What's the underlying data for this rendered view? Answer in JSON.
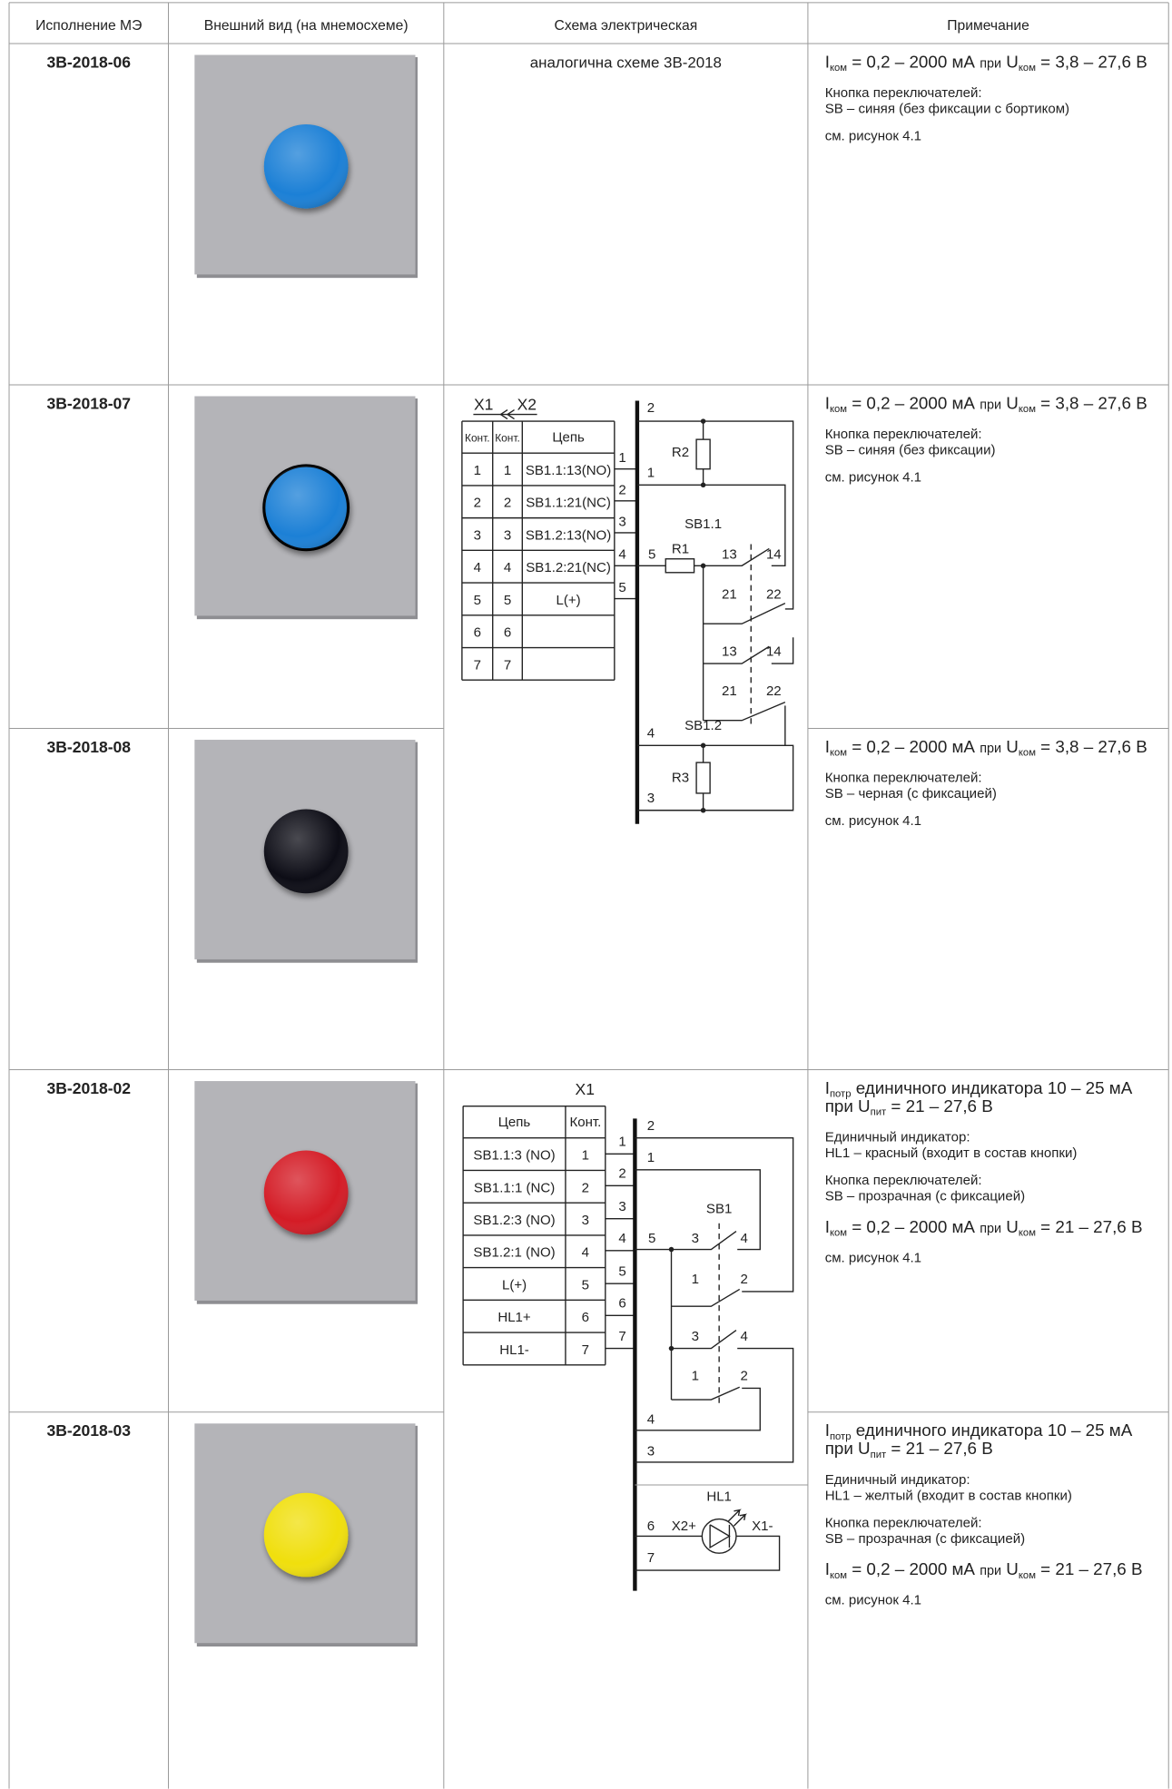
{
  "table": {
    "headers": [
      "Исполнение МЭ",
      "Внешний вид (на мнемосхеме)",
      "Схема электрическая",
      "Примечание"
    ],
    "rows": [
      {
        "id": "3В-2018-06",
        "button": {
          "color": "#1a80d6"
        },
        "scheme": "аналогична схеме 3В-2018",
        "notes": [
          [
            [
              "I",
              {
                "sub": "ком"
              },
              " = 0,2 – 2000 мА ",
              {
                "small": "при"
              },
              " U",
              {
                "sub": "ком"
              },
              " = 3,8 – 27,6 В"
            ]
          ],
          [
            "Кнопка переключателей:",
            "SB – синяя (без фиксации с бортиком)"
          ],
          [
            "см. рисунок 4.1"
          ]
        ]
      },
      {
        "id": "3В-2018-07",
        "button": {
          "color": "#1a80d6",
          "rim": "#000000"
        },
        "notes": [
          [
            [
              "I",
              {
                "sub": "ком"
              },
              " = 0,2 – 2000 мА ",
              {
                "small": "при"
              },
              " U",
              {
                "sub": "ком"
              },
              " = 3,8 – 27,6 В"
            ]
          ],
          [
            "Кнопка переключателей:",
            "SB – синяя (без фиксации)"
          ],
          [
            "см. рисунок 4.1"
          ]
        ]
      },
      {
        "id": "3В-2018-08",
        "button": {
          "color": "#111116"
        },
        "notes": [
          [
            [
              "I",
              {
                "sub": "ком"
              },
              " = 0,2 – 2000 мА ",
              {
                "small": "при"
              },
              " U",
              {
                "sub": "ком"
              },
              " = 3,8 – 27,6 В"
            ]
          ],
          [
            "Кнопка переключателей:",
            "SB – черная (с фиксацией)"
          ],
          [
            "см. рисунок 4.1"
          ]
        ]
      },
      {
        "id": "3В-2018-02",
        "button": {
          "color": "#d41f26"
        },
        "notes": [
          [
            [
              "I",
              {
                "sub": "потр"
              },
              " единичного индикатора 10 – 25 мА"
            ],
            [
              "при U",
              {
                "sub": "пит"
              },
              " = 21 – 27,6 В"
            ]
          ],
          [
            "Единичный индикатор:",
            "HL1 – красный (входит в состав кнопки)"
          ],
          [
            "Кнопка переключателей:",
            "SB – прозрачная (с фиксацией)"
          ],
          [
            [
              "I",
              {
                "sub": "ком"
              },
              " = 0,2 – 2000 мА ",
              {
                "small": "при"
              },
              " U",
              {
                "sub": "ком"
              },
              " = 21 – 27,6 В"
            ]
          ],
          [
            "см. рисунок 4.1"
          ]
        ]
      },
      {
        "id": "3В-2018-03",
        "button": {
          "color": "#f0df10"
        },
        "notes": [
          [
            [
              "I",
              {
                "sub": "потр"
              },
              " единичного индикатора 10 – 25 мА"
            ],
            [
              "при U",
              {
                "sub": "пит"
              },
              " = 21 – 27,6 В"
            ]
          ],
          [
            "Единичный индикатор:",
            "HL1 – желтый (входит в состав кнопки)"
          ],
          [
            "Кнопка переключателей:",
            "SB – прозрачная (с фиксацией)"
          ],
          [
            [
              "I",
              {
                "sub": "ком"
              },
              " = 0,2 – 2000 мА ",
              {
                "small": "при"
              },
              " U",
              {
                "sub": "ком"
              },
              " = 21 – 27,6 В"
            ]
          ],
          [
            "см. рисунок 4.1"
          ]
        ]
      }
    ]
  },
  "schemes": [
    {
      "connectors": [
        "X1",
        "X2"
      ],
      "header": [
        "Конт.",
        "Конт.",
        "Цепь"
      ],
      "rows": [
        [
          "1",
          "1",
          "SB1.1:13(NO)"
        ],
        [
          "2",
          "2",
          "SB1.1:21(NC)"
        ],
        [
          "3",
          "3",
          "SB1.2:13(NO)"
        ],
        [
          "4",
          "4",
          "SB1.2:21(NC)"
        ],
        [
          "5",
          "5",
          "L(+)"
        ],
        [
          "6",
          "6"
        ],
        [
          "7",
          "7"
        ]
      ],
      "wires_in": [
        "1",
        "2",
        "3",
        "4",
        "5"
      ],
      "wires_out": [
        "2",
        "1",
        "5",
        "4",
        "3"
      ],
      "labels": [
        "R2",
        "SB1.1",
        "R1",
        "13",
        "14",
        "21",
        "22",
        "13",
        "14",
        "21",
        "22",
        "SB1.2",
        "R3"
      ]
    },
    {
      "connectors": [
        "X1"
      ],
      "header": [
        "Цепь",
        "Конт."
      ],
      "rows": [
        [
          "SB1.1:3 (NO)",
          "1"
        ],
        [
          "SB1.1:1 (NC)",
          "2"
        ],
        [
          "SB1.2:3 (NO)",
          "3"
        ],
        [
          "SB1.2:1 (NO)",
          "4"
        ],
        [
          "L(+)",
          "5"
        ],
        [
          "HL1+",
          "6"
        ],
        [
          "HL1-",
          "7"
        ]
      ],
      "wires_in": [
        "1",
        "2",
        "3",
        "4",
        "5",
        "6",
        "7"
      ],
      "wires_out": [
        "2",
        "1",
        "5",
        "4",
        "3",
        "6",
        "7"
      ],
      "labels": [
        "SB1",
        "3",
        "4",
        "1",
        "2",
        "3",
        "4",
        "1",
        "2",
        "HL1",
        "X2+",
        "X1-"
      ]
    }
  ]
}
